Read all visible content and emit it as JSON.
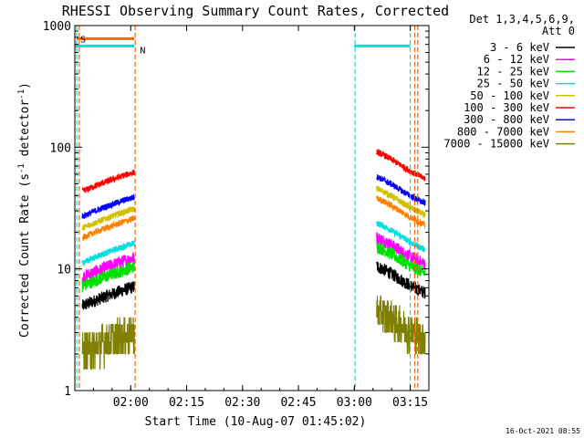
{
  "chart_data": {
    "type": "line",
    "title": "RHESSI Observing Summary Count Rates, Corrected",
    "ylabel_main": "Corrected Count Rate (s",
    "ylabel_sup1": "-1",
    "ylabel_mid": " detector",
    "ylabel_sup2": "-1",
    "ylabel_end": ")",
    "xlabel": "Start Time (10-Aug-07 01:45:02)",
    "yscale": "log",
    "ylim": [
      1,
      1000
    ],
    "xlim_minutes": [
      0,
      95
    ],
    "x_ticks": [
      {
        "label": "02:00",
        "min": 15
      },
      {
        "label": "02:15",
        "min": 30
      },
      {
        "label": "02:30",
        "min": 45
      },
      {
        "label": "02:45",
        "min": 60
      },
      {
        "label": "03:00",
        "min": 75
      },
      {
        "label": "03:15",
        "min": 90
      }
    ],
    "y_ticks": [
      {
        "label": "1",
        "value": 1
      },
      {
        "label": "10",
        "value": 10
      },
      {
        "label": "100",
        "value": 100
      },
      {
        "label": "1000",
        "value": 1000
      }
    ],
    "legend_header": [
      "Det 1,3,4,5,6,9,",
      "Att 0"
    ],
    "legend_position": "right",
    "series": [
      {
        "name": "3 - 6 keV",
        "color": "#000000",
        "base": 5.5
      },
      {
        "name": "6 - 12 keV",
        "color": "#ff00ff",
        "base": 9.5
      },
      {
        "name": "12 - 25 keV",
        "color": "#00e000",
        "base": 8.0
      },
      {
        "name": "25 - 50 keV",
        "color": "#00e0e0",
        "base": 12.5
      },
      {
        "name": "50 - 100 keV",
        "color": "#d0c000",
        "base": 24.0
      },
      {
        "name": "100 - 300 keV",
        "color": "#ff0000",
        "base": 48.0
      },
      {
        "name": "300 - 800 keV",
        "color": "#0000ff",
        "base": 30.0
      },
      {
        "name": "800 - 7000 keV",
        "color": "#ff8000",
        "base": 20.0
      },
      {
        "name": "7000 - 15000 keV",
        "color": "#808000",
        "base": 2.3
      }
    ],
    "day_intervals_minutes": [
      [
        2,
        16
      ],
      [
        81,
        94
      ]
    ],
    "flag_bars": [
      {
        "label": "S",
        "color": "#ff6000",
        "x0": 0.5,
        "x1": 16,
        "value": 780
      },
      {
        "label": "N",
        "color": "#00e0e0",
        "x0": 0,
        "x1": 16,
        "value": 680
      },
      {
        "label": "",
        "color": "#00e0e0",
        "x0": 75,
        "x1": 90,
        "value": 680
      }
    ],
    "vertical_markers_minutes": [
      {
        "x": 0.5,
        "color": "#00e0e0"
      },
      {
        "x": 1.2,
        "color": "#ff6000"
      },
      {
        "x": 16.2,
        "color": "#ff6000"
      },
      {
        "x": 75.2,
        "color": "#00e0e0"
      },
      {
        "x": 90,
        "color": "#00e0e0"
      },
      {
        "x": 91.2,
        "color": "#ff6000"
      },
      {
        "x": 92.0,
        "color": "#ff6000"
      }
    ]
  },
  "footer": {
    "timestamp": "16-Oct-2021 08:55"
  }
}
